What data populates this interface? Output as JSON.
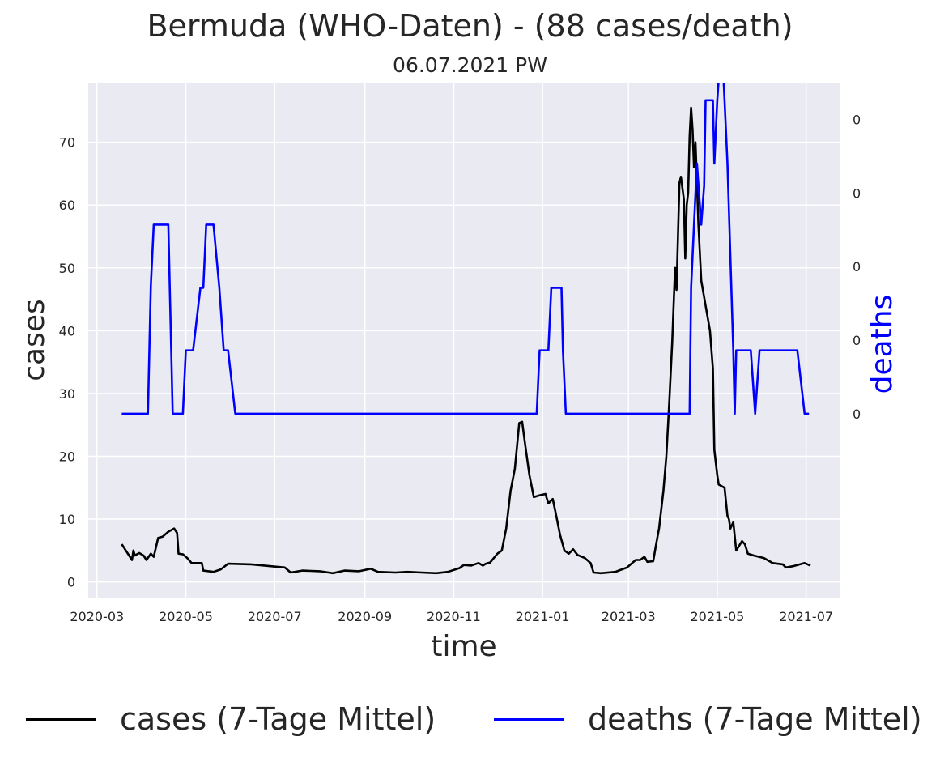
{
  "chart_data": {
    "type": "line",
    "title": "Bermuda (WHO-Daten) - (88 cases/death)",
    "subtitle": "06.07.2021 PW",
    "xlabel": "time",
    "ylabel_left": "cases",
    "ylabel_right": "deaths",
    "x_ticks": [
      "2020-03",
      "2020-05",
      "2020-07",
      "2020-09",
      "2020-11",
      "2021-01",
      "2021-03",
      "2021-05",
      "2021-07"
    ],
    "x_range": [
      "2020-02-24",
      "2021-07-24"
    ],
    "y_left_ticks": [
      0,
      10,
      20,
      30,
      40,
      50,
      60,
      70
    ],
    "y_left_range": [
      -2.5,
      79.5
    ],
    "y_right_ticks": [
      "0",
      "0",
      "0",
      "0",
      "0"
    ],
    "y_right_range": [
      -0.0025,
      0.0045
    ],
    "grid": true,
    "legend_position": "bottom-center",
    "colors": {
      "cases": "#000000",
      "deaths": "#0000ff",
      "background": "#eaeaf2",
      "grid": "#ffffff"
    },
    "series": [
      {
        "name": "cases (7-Tage Mittel)",
        "color": "#000000",
        "points": [
          [
            "2020-03-18",
            6.0
          ],
          [
            "2020-03-25",
            3.5
          ],
          [
            "2020-03-26",
            5.0
          ],
          [
            "2020-03-27",
            4.2
          ],
          [
            "2020-03-30",
            4.6
          ],
          [
            "2020-04-02",
            4.2
          ],
          [
            "2020-04-04",
            3.5
          ],
          [
            "2020-04-07",
            4.5
          ],
          [
            "2020-04-09",
            4.0
          ],
          [
            "2020-04-12",
            7.0
          ],
          [
            "2020-04-15",
            7.2
          ],
          [
            "2020-04-19",
            8.0
          ],
          [
            "2020-04-23",
            8.5
          ],
          [
            "2020-04-25",
            7.8
          ],
          [
            "2020-04-26",
            4.5
          ],
          [
            "2020-04-29",
            4.4
          ],
          [
            "2020-05-02",
            3.8
          ],
          [
            "2020-05-05",
            3.0
          ],
          [
            "2020-05-12",
            3.0
          ],
          [
            "2020-05-13",
            1.8
          ],
          [
            "2020-05-20",
            1.6
          ],
          [
            "2020-05-25",
            2.0
          ],
          [
            "2020-05-30",
            2.9
          ],
          [
            "2020-06-15",
            2.8
          ],
          [
            "2020-07-08",
            2.3
          ],
          [
            "2020-07-12",
            1.5
          ],
          [
            "2020-07-20",
            1.8
          ],
          [
            "2020-08-01",
            1.7
          ],
          [
            "2020-08-10",
            1.4
          ],
          [
            "2020-08-18",
            1.8
          ],
          [
            "2020-08-28",
            1.7
          ],
          [
            "2020-09-05",
            2.1
          ],
          [
            "2020-09-10",
            1.6
          ],
          [
            "2020-09-22",
            1.5
          ],
          [
            "2020-09-30",
            1.6
          ],
          [
            "2020-10-10",
            1.5
          ],
          [
            "2020-10-20",
            1.4
          ],
          [
            "2020-10-28",
            1.6
          ],
          [
            "2020-11-05",
            2.2
          ],
          [
            "2020-11-08",
            2.7
          ],
          [
            "2020-11-13",
            2.6
          ],
          [
            "2020-11-18",
            3.0
          ],
          [
            "2020-11-21",
            2.6
          ],
          [
            "2020-11-23",
            2.9
          ],
          [
            "2020-11-26",
            3.1
          ],
          [
            "2020-12-01",
            4.5
          ],
          [
            "2020-12-04",
            5.0
          ],
          [
            "2020-12-07",
            8.5
          ],
          [
            "2020-12-10",
            14.5
          ],
          [
            "2020-12-13",
            18.0
          ],
          [
            "2020-12-16",
            25.3
          ],
          [
            "2020-12-18",
            25.5
          ],
          [
            "2020-12-20",
            22.0
          ],
          [
            "2020-12-23",
            17.0
          ],
          [
            "2020-12-26",
            13.5
          ],
          [
            "2020-12-30",
            13.8
          ],
          [
            "2021-01-03",
            14.0
          ],
          [
            "2021-01-05",
            12.5
          ],
          [
            "2021-01-08",
            13.2
          ],
          [
            "2021-01-10",
            11.0
          ],
          [
            "2021-01-13",
            7.5
          ],
          [
            "2021-01-16",
            5.0
          ],
          [
            "2021-01-19",
            4.5
          ],
          [
            "2021-01-22",
            5.2
          ],
          [
            "2021-01-25",
            4.3
          ],
          [
            "2021-01-30",
            3.8
          ],
          [
            "2021-02-03",
            3.0
          ],
          [
            "2021-02-05",
            1.5
          ],
          [
            "2021-02-10",
            1.4
          ],
          [
            "2021-02-20",
            1.6
          ],
          [
            "2021-02-28",
            2.3
          ],
          [
            "2021-03-06",
            3.5
          ],
          [
            "2021-03-09",
            3.5
          ],
          [
            "2021-03-12",
            4.0
          ],
          [
            "2021-03-14",
            3.2
          ],
          [
            "2021-03-18",
            3.3
          ],
          [
            "2021-03-20",
            6.0
          ],
          [
            "2021-03-22",
            8.5
          ],
          [
            "2021-03-25",
            14.5
          ],
          [
            "2021-03-27",
            20.0
          ],
          [
            "2021-03-29",
            28.5
          ],
          [
            "2021-03-31",
            38.0
          ],
          [
            "2021-04-02",
            50.0
          ],
          [
            "2021-04-03",
            46.5
          ],
          [
            "2021-04-05",
            63.5
          ],
          [
            "2021-04-06",
            64.5
          ],
          [
            "2021-04-08",
            61.0
          ],
          [
            "2021-04-09",
            51.5
          ],
          [
            "2021-04-10",
            60.0
          ],
          [
            "2021-04-11",
            62.0
          ],
          [
            "2021-04-12",
            71.0
          ],
          [
            "2021-04-13",
            75.5
          ],
          [
            "2021-04-14",
            72.0
          ],
          [
            "2021-04-15",
            66.0
          ],
          [
            "2021-04-16",
            70.0
          ],
          [
            "2021-04-18",
            57.0
          ],
          [
            "2021-04-20",
            48.0
          ],
          [
            "2021-04-23",
            44.0
          ],
          [
            "2021-04-26",
            40.0
          ],
          [
            "2021-04-28",
            34.0
          ],
          [
            "2021-04-29",
            21.0
          ],
          [
            "2021-05-01",
            17.0
          ],
          [
            "2021-05-02",
            15.5
          ],
          [
            "2021-05-06",
            15.0
          ],
          [
            "2021-05-08",
            10.5
          ],
          [
            "2021-05-09",
            10.0
          ],
          [
            "2021-05-10",
            8.5
          ],
          [
            "2021-05-12",
            9.5
          ],
          [
            "2021-05-14",
            5.0
          ],
          [
            "2021-05-18",
            6.5
          ],
          [
            "2021-05-20",
            6.0
          ],
          [
            "2021-05-22",
            4.5
          ],
          [
            "2021-05-26",
            4.2
          ],
          [
            "2021-06-02",
            3.8
          ],
          [
            "2021-06-08",
            3.0
          ],
          [
            "2021-06-15",
            2.8
          ],
          [
            "2021-06-17",
            2.3
          ],
          [
            "2021-06-22",
            2.5
          ],
          [
            "2021-06-30",
            3.0
          ],
          [
            "2021-07-04",
            2.6
          ]
        ]
      },
      {
        "name": "deaths (7-Tage Mittel)",
        "color": "#0000ff",
        "points": [
          [
            "2020-03-18",
            0.0
          ],
          [
            "2020-04-05",
            0.0
          ],
          [
            "2020-04-07",
            0.00174
          ],
          [
            "2020-04-09",
            0.00257
          ],
          [
            "2020-04-15",
            0.00257
          ],
          [
            "2020-04-19",
            0.00257
          ],
          [
            "2020-04-22",
            0.0
          ],
          [
            "2020-04-29",
            0.0
          ],
          [
            "2020-05-01",
            0.00086
          ],
          [
            "2020-05-06",
            0.00086
          ],
          [
            "2020-05-11",
            0.00171
          ],
          [
            "2020-05-13",
            0.00171
          ],
          [
            "2020-05-15",
            0.00257
          ],
          [
            "2020-05-20",
            0.00257
          ],
          [
            "2020-05-24",
            0.00171
          ],
          [
            "2020-05-27",
            0.00086
          ],
          [
            "2020-05-30",
            0.00086
          ],
          [
            "2020-06-04",
            0.0
          ],
          [
            "2020-12-28",
            0.0
          ],
          [
            "2020-12-30",
            0.00086
          ],
          [
            "2021-01-05",
            0.00086
          ],
          [
            "2021-01-07",
            0.00171
          ],
          [
            "2021-01-14",
            0.00171
          ],
          [
            "2021-01-15",
            0.00086
          ],
          [
            "2021-01-17",
            0.0
          ],
          [
            "2021-04-12",
            0.0
          ],
          [
            "2021-04-13",
            0.00171
          ],
          [
            "2021-04-15",
            0.00257
          ],
          [
            "2021-04-17",
            0.0034
          ],
          [
            "2021-04-20",
            0.00257
          ],
          [
            "2021-04-22",
            0.0031
          ],
          [
            "2021-04-23",
            0.00426
          ],
          [
            "2021-04-28",
            0.00426
          ],
          [
            "2021-04-29",
            0.0034
          ],
          [
            "2021-05-01",
            0.00426
          ],
          [
            "2021-05-04",
            0.0051
          ],
          [
            "2021-05-06",
            0.00426
          ],
          [
            "2021-05-08",
            0.0034
          ],
          [
            "2021-05-12",
            0.00086
          ],
          [
            "2021-05-13",
            0.0
          ],
          [
            "2021-05-14",
            0.00086
          ],
          [
            "2021-05-24",
            0.00086
          ],
          [
            "2021-05-27",
            0.0
          ],
          [
            "2021-05-30",
            0.00086
          ],
          [
            "2021-06-25",
            0.00086
          ],
          [
            "2021-06-30",
            0.0
          ],
          [
            "2021-07-03",
            0.0
          ]
        ]
      }
    ]
  }
}
